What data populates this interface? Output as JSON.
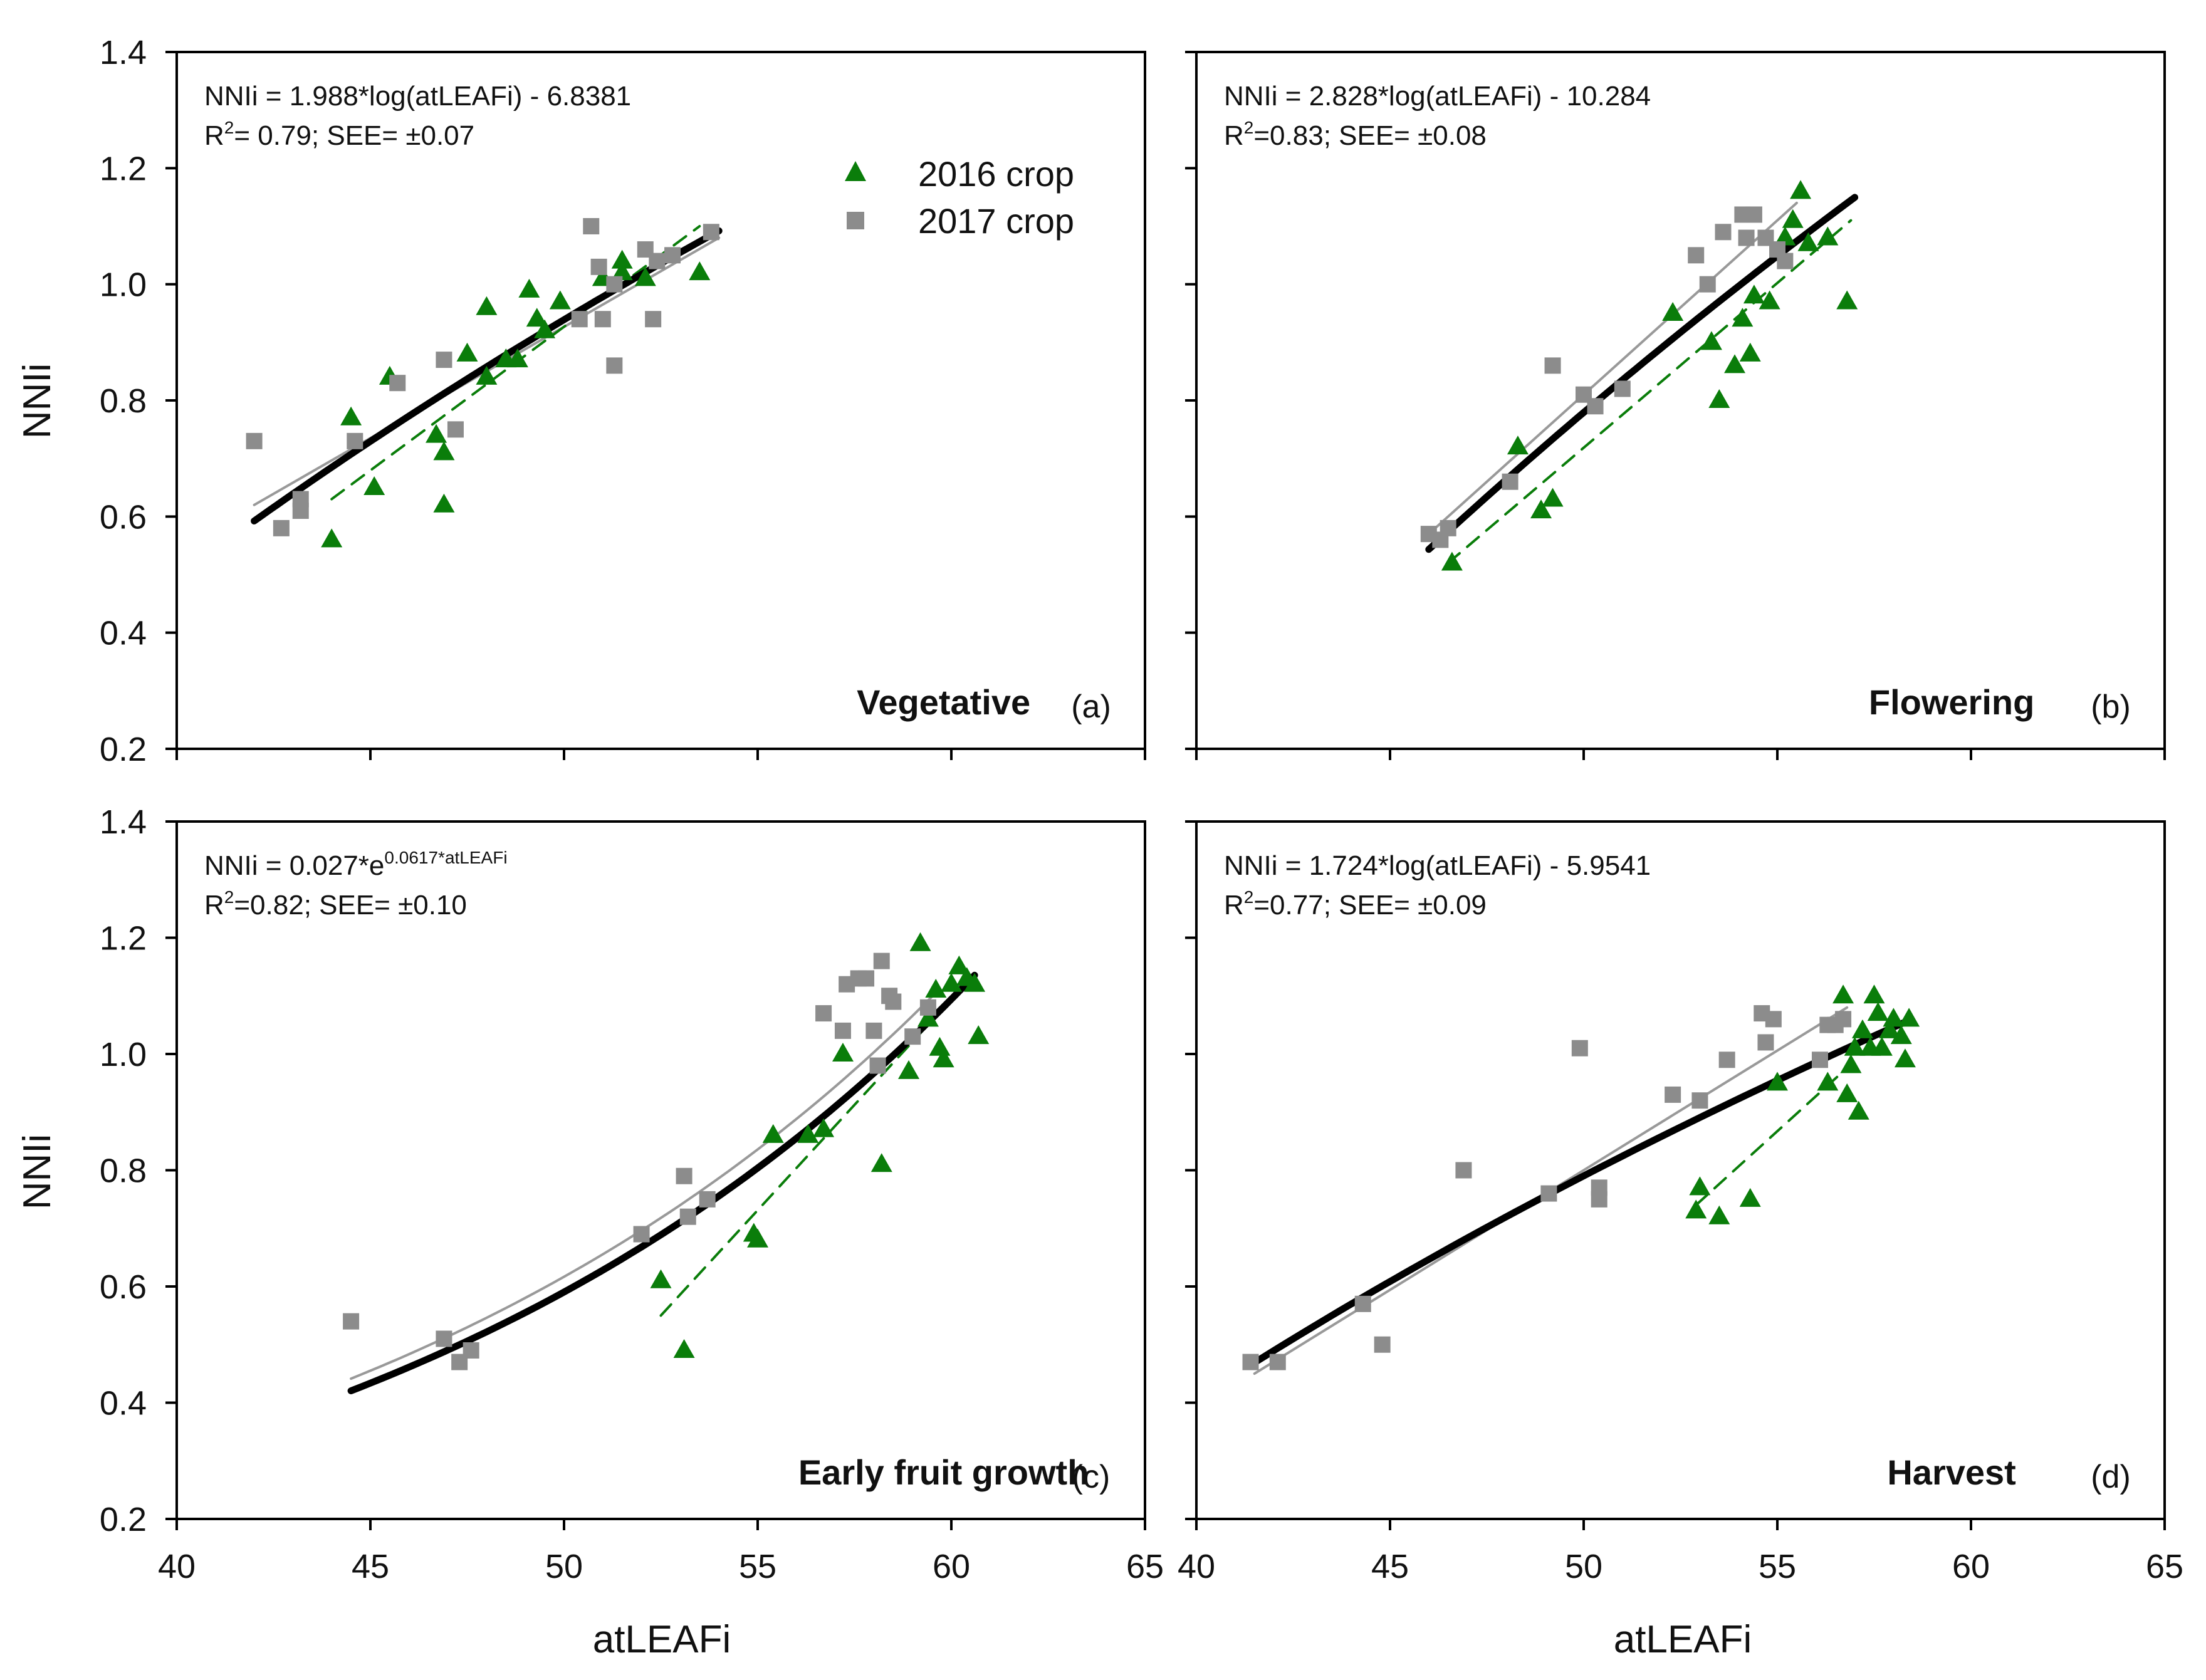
{
  "figure": {
    "ylabel": "NNIi",
    "xlabel": "atLEAFi",
    "legend": [
      {
        "label": "2016 crop",
        "marker": "triangle",
        "color": "#0a7d0a"
      },
      {
        "label": "2017 crop",
        "marker": "square",
        "color": "#8c8c8c"
      }
    ],
    "colors": {
      "fit_overall": "#000000",
      "fit_2016": "#0a7d0a",
      "fit_2017": "#999999"
    }
  },
  "chart_data": [
    {
      "type": "scatter",
      "panel": "(a)",
      "stage": "Vegetative",
      "eq_prefix": "NNIi = 1.988*log(atLEAFi) - 6.8381",
      "eq_sup": "",
      "r2": "R",
      "r2_rest": "= 0.79; SEE= ±0.07",
      "xlim": [
        40,
        65
      ],
      "ylim": [
        0.2,
        1.4
      ],
      "xticks": [
        40,
        45,
        50,
        55,
        60,
        65
      ],
      "yticks": [
        0.2,
        0.4,
        0.6,
        0.8,
        1.0,
        1.2,
        1.4
      ],
      "series": [
        {
          "name": "2016 crop",
          "x": [
            44.0,
            44.5,
            45.1,
            45.5,
            46.7,
            46.9,
            46.9,
            47.5,
            48.0,
            48.0,
            48.5,
            48.8,
            49.1,
            49.3,
            49.5,
            49.9,
            51.0,
            51.5,
            51.5,
            52.1,
            53.5
          ],
          "y": [
            0.56,
            0.77,
            0.65,
            0.84,
            0.74,
            0.71,
            0.62,
            0.88,
            0.84,
            0.96,
            0.87,
            0.87,
            0.99,
            0.94,
            0.92,
            0.97,
            1.01,
            1.04,
            1.02,
            1.01,
            1.02
          ]
        },
        {
          "name": "2017 crop",
          "x": [
            42.0,
            42.7,
            43.2,
            43.2,
            44.6,
            45.7,
            46.9,
            47.2,
            50.4,
            50.7,
            50.9,
            51.0,
            51.3,
            51.3,
            52.1,
            52.3,
            52.4,
            52.8,
            53.8
          ],
          "y": [
            0.73,
            0.58,
            0.61,
            0.63,
            0.73,
            0.83,
            0.87,
            0.75,
            0.94,
            1.1,
            1.03,
            0.94,
            0.86,
            1.0,
            1.06,
            0.94,
            1.04,
            1.05,
            1.09
          ]
        }
      ],
      "fits": [
        {
          "name": "overall",
          "model": "log",
          "a": 1.988,
          "b": -6.8381,
          "x": [
            42,
            54
          ]
        },
        {
          "name": "2016 crop",
          "model": "linear",
          "points": [
            [
              44.0,
              0.63
            ],
            [
              53.5,
              1.1
            ]
          ]
        },
        {
          "name": "2017 crop",
          "model": "linear",
          "points": [
            [
              42.0,
              0.62
            ],
            [
              54.0,
              1.08
            ]
          ]
        }
      ]
    },
    {
      "type": "scatter",
      "panel": "(b)",
      "stage": "Flowering",
      "eq_prefix": "NNIi = 2.828*log(atLEAFi) - 10.284",
      "eq_sup": "",
      "r2": "R",
      "r2_rest": "=0.83; SEE= ±0.08",
      "xlim": [
        40,
        65
      ],
      "ylim": [
        0.2,
        1.4
      ],
      "xticks": [
        40,
        45,
        50,
        55,
        60,
        65
      ],
      "yticks": [
        0.2,
        0.4,
        0.6,
        0.8,
        1.0,
        1.2,
        1.4
      ],
      "series": [
        {
          "name": "2016 crop",
          "x": [
            46.6,
            48.3,
            48.9,
            49.2,
            52.3,
            53.3,
            53.5,
            53.9,
            54.1,
            54.3,
            54.4,
            54.8,
            55.2,
            55.4,
            55.6,
            55.8,
            56.3,
            56.8
          ],
          "y": [
            0.52,
            0.72,
            0.61,
            0.63,
            0.95,
            0.9,
            0.8,
            0.86,
            0.94,
            0.88,
            0.98,
            0.97,
            1.08,
            1.11,
            1.16,
            1.07,
            1.08,
            0.97
          ]
        },
        {
          "name": "2017 crop",
          "x": [
            46.0,
            46.3,
            46.5,
            48.1,
            49.2,
            50.0,
            50.3,
            51.0,
            52.9,
            53.2,
            53.6,
            54.1,
            54.2,
            54.4,
            54.7,
            55.0,
            55.2
          ],
          "y": [
            0.57,
            0.56,
            0.58,
            0.66,
            0.86,
            0.81,
            0.79,
            0.82,
            1.05,
            1.0,
            1.09,
            1.12,
            1.08,
            1.12,
            1.08,
            1.06,
            1.04
          ]
        }
      ],
      "fits": [
        {
          "name": "overall",
          "model": "log",
          "a": 2.828,
          "b": -10.284,
          "x": [
            46,
            57
          ]
        },
        {
          "name": "2016 crop",
          "model": "linear",
          "points": [
            [
              46.5,
              0.52
            ],
            [
              56.9,
              1.11
            ]
          ]
        },
        {
          "name": "2017 crop",
          "model": "linear",
          "points": [
            [
              46.0,
              0.57
            ],
            [
              55.5,
              1.14
            ]
          ]
        }
      ]
    },
    {
      "type": "scatter",
      "panel": "(c)",
      "stage": "Early fruit growth",
      "eq_prefix": "NNIi = 0.027*e",
      "eq_sup": "0.0617*atLEAFi",
      "r2": "R",
      "r2_rest": "=0.82; SEE= ±0.10",
      "xlim": [
        40,
        65
      ],
      "ylim": [
        0.2,
        1.4
      ],
      "xticks": [
        40,
        45,
        50,
        55,
        60,
        65
      ],
      "yticks": [
        0.2,
        0.4,
        0.6,
        0.8,
        1.0,
        1.2,
        1.4
      ],
      "series": [
        {
          "name": "2016 crop",
          "x": [
            52.5,
            53.1,
            54.9,
            55.0,
            55.4,
            56.3,
            56.7,
            57.2,
            58.2,
            58.9,
            59.2,
            59.4,
            59.6,
            59.7,
            59.8,
            60.0,
            60.2,
            60.4,
            60.6,
            60.7
          ],
          "y": [
            0.61,
            0.49,
            0.69,
            0.68,
            0.86,
            0.86,
            0.87,
            1.0,
            0.81,
            0.97,
            1.19,
            1.06,
            1.11,
            1.01,
            0.99,
            1.12,
            1.15,
            1.13,
            1.12,
            1.03
          ]
        },
        {
          "name": "2017 crop",
          "x": [
            44.5,
            46.9,
            47.3,
            47.6,
            52.0,
            53.1,
            53.2,
            53.7,
            56.7,
            57.2,
            57.3,
            57.6,
            57.8,
            58.0,
            58.1,
            58.2,
            58.4,
            58.5,
            59.0,
            59.4
          ],
          "y": [
            0.54,
            0.51,
            0.47,
            0.49,
            0.69,
            0.79,
            0.72,
            0.75,
            1.07,
            1.04,
            1.12,
            1.13,
            1.13,
            1.04,
            0.98,
            1.16,
            1.1,
            1.09,
            1.03,
            1.08
          ]
        }
      ],
      "fits": [
        {
          "name": "overall",
          "model": "exp",
          "a": 0.027,
          "b": 0.0617,
          "x": [
            44.5,
            60.6
          ]
        },
        {
          "name": "2016 crop",
          "model": "linear",
          "points": [
            [
              52.5,
              0.55
            ],
            [
              60.5,
              1.13
            ]
          ]
        },
        {
          "name": "2017 crop",
          "model": "exp",
          "a": 0.0295,
          "b": 0.0608,
          "x": [
            44.5,
            59.5
          ]
        }
      ]
    },
    {
      "type": "scatter",
      "panel": "(d)",
      "stage": "Harvest",
      "eq_prefix": "NNIi = 1.724*log(atLEAFi) - 5.9541",
      "eq_sup": "",
      "r2": "R",
      "r2_rest": "=0.77; SEE= ±0.09",
      "xlim": [
        40,
        65
      ],
      "ylim": [
        0.2,
        1.4
      ],
      "xticks": [
        40,
        45,
        50,
        55,
        60,
        65
      ],
      "yticks": [
        0.2,
        0.4,
        0.6,
        0.8,
        1.0,
        1.2,
        1.4
      ],
      "series": [
        {
          "name": "2016 crop",
          "x": [
            52.9,
            53.0,
            53.5,
            54.3,
            55.0,
            56.3,
            56.7,
            56.8,
            56.9,
            57.0,
            57.1,
            57.2,
            57.4,
            57.5,
            57.6,
            57.7,
            57.9,
            58.0,
            58.2,
            58.3,
            58.4
          ],
          "y": [
            0.73,
            0.77,
            0.72,
            0.75,
            0.95,
            0.95,
            1.1,
            0.93,
            0.98,
            1.01,
            0.9,
            1.04,
            1.01,
            1.1,
            1.07,
            1.01,
            1.04,
            1.06,
            1.03,
            0.99,
            1.06
          ]
        },
        {
          "name": "2017 crop",
          "x": [
            41.4,
            42.1,
            44.3,
            44.8,
            46.9,
            49.1,
            49.9,
            50.4,
            50.4,
            52.3,
            53.0,
            53.7,
            54.6,
            54.7,
            54.9,
            56.1,
            56.3,
            56.5,
            56.7
          ],
          "y": [
            0.47,
            0.47,
            0.57,
            0.5,
            0.8,
            0.76,
            1.01,
            0.77,
            0.75,
            0.93,
            0.92,
            0.99,
            1.07,
            1.02,
            1.06,
            0.99,
            1.05,
            1.05,
            1.06
          ]
        }
      ],
      "fits": [
        {
          "name": "overall",
          "model": "log",
          "a": 1.724,
          "b": -5.9541,
          "x": [
            41.5,
            58.3
          ]
        },
        {
          "name": "2016 crop",
          "model": "linear",
          "points": [
            [
              52.9,
              0.74
            ],
            [
              56.7,
              0.97
            ]
          ]
        },
        {
          "name": "2017 crop",
          "model": "linear",
          "points": [
            [
              41.5,
              0.45
            ],
            [
              56.8,
              1.08
            ]
          ]
        }
      ]
    }
  ]
}
